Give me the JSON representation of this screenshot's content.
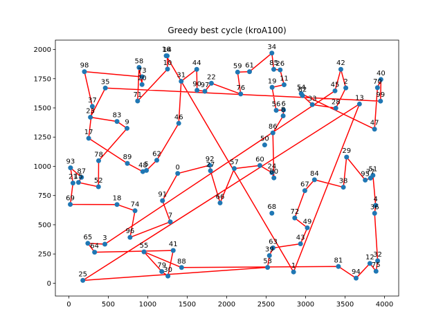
{
  "chart_data": {
    "type": "scatter",
    "title": "Greedy best cycle (kroA100)",
    "xlabel": "",
    "ylabel": "",
    "xlim": [
      -170,
      4180
    ],
    "ylim": [
      -110,
      2080
    ],
    "xticks": [
      0,
      500,
      1000,
      1500,
      2000,
      2500,
      3000,
      3500,
      4000
    ],
    "yticks": [
      0,
      250,
      500,
      750,
      1000,
      1250,
      1500,
      1750,
      2000
    ],
    "point_color": "#1f77b4",
    "line_color": "#ff0000",
    "points": [
      {
        "id": "0",
        "x": 1380,
        "y": 939
      },
      {
        "id": "1",
        "x": 2848,
        "y": 96
      },
      {
        "id": "2",
        "x": 3510,
        "y": 1671
      },
      {
        "id": "3",
        "x": 457,
        "y": 334
      },
      {
        "id": "4",
        "x": 3888,
        "y": 666
      },
      {
        "id": "5",
        "x": 984,
        "y": 965
      },
      {
        "id": "6",
        "x": 2721,
        "y": 1482
      },
      {
        "id": "7",
        "x": 1286,
        "y": 525
      },
      {
        "id": "8",
        "x": 2716,
        "y": 1432
      },
      {
        "id": "9",
        "x": 738,
        "y": 1325
      },
      {
        "id": "10",
        "x": 1251,
        "y": 1832
      },
      {
        "id": "11",
        "x": 2728,
        "y": 1698
      },
      {
        "id": "12",
        "x": 3815,
        "y": 169
      },
      {
        "id": "13",
        "x": 3683,
        "y": 1533
      },
      {
        "id": "14",
        "x": 1247,
        "y": 1945
      },
      {
        "id": "15",
        "x": 123,
        "y": 862
      },
      {
        "id": "16",
        "x": 1234,
        "y": 1946
      },
      {
        "id": "17",
        "x": 252,
        "y": 1240
      },
      {
        "id": "18",
        "x": 611,
        "y": 673
      },
      {
        "id": "19",
        "x": 2576,
        "y": 1676
      },
      {
        "id": "20",
        "x": 928,
        "y": 1700
      },
      {
        "id": "21",
        "x": 53,
        "y": 857
      },
      {
        "id": "22",
        "x": 1807,
        "y": 1711
      },
      {
        "id": "23",
        "x": 274,
        "y": 1420
      },
      {
        "id": "24",
        "x": 2574,
        "y": 946
      },
      {
        "id": "25",
        "x": 178,
        "y": 24
      },
      {
        "id": "26",
        "x": 2678,
        "y": 1825
      },
      {
        "id": "27",
        "x": 1795,
        "y": 962
      },
      {
        "id": "28",
        "x": 3384,
        "y": 1498
      },
      {
        "id": "29",
        "x": 3520,
        "y": 1079
      },
      {
        "id": "30",
        "x": 1256,
        "y": 61
      },
      {
        "id": "31",
        "x": 1424,
        "y": 1728
      },
      {
        "id": "32",
        "x": 3913,
        "y": 192
      },
      {
        "id": "33",
        "x": 3085,
        "y": 1528
      },
      {
        "id": "34",
        "x": 2573,
        "y": 1969
      },
      {
        "id": "35",
        "x": 463,
        "y": 1670
      },
      {
        "id": "36",
        "x": 3875,
        "y": 598
      },
      {
        "id": "37",
        "x": 298,
        "y": 1513
      },
      {
        "id": "38",
        "x": 3479,
        "y": 821
      },
      {
        "id": "39",
        "x": 2542,
        "y": 236
      },
      {
        "id": "40",
        "x": 3955,
        "y": 1743
      },
      {
        "id": "41",
        "x": 1323,
        "y": 280
      },
      {
        "id": "42",
        "x": 3447,
        "y": 1830
      },
      {
        "id": "43",
        "x": 2936,
        "y": 337
      },
      {
        "id": "44",
        "x": 1621,
        "y": 1830
      },
      {
        "id": "45",
        "x": 3373,
        "y": 1646
      },
      {
        "id": "46",
        "x": 1393,
        "y": 1368
      },
      {
        "id": "47",
        "x": 3874,
        "y": 1318
      },
      {
        "id": "48",
        "x": 938,
        "y": 955
      },
      {
        "id": "49",
        "x": 3022,
        "y": 474
      },
      {
        "id": "50",
        "x": 2482,
        "y": 1183
      },
      {
        "id": "51",
        "x": 3854,
        "y": 923
      },
      {
        "id": "52",
        "x": 376,
        "y": 825
      },
      {
        "id": "53",
        "x": 2519,
        "y": 135
      },
      {
        "id": "54",
        "x": 2945,
        "y": 1622
      },
      {
        "id": "55",
        "x": 953,
        "y": 268
      },
      {
        "id": "56",
        "x": 2628,
        "y": 1479
      },
      {
        "id": "57",
        "x": 2097,
        "y": 981
      },
      {
        "id": "58",
        "x": 890,
        "y": 1846
      },
      {
        "id": "59",
        "x": 2139,
        "y": 1806
      },
      {
        "id": "60",
        "x": 2421,
        "y": 1007
      },
      {
        "id": "61",
        "x": 2290,
        "y": 1810
      },
      {
        "id": "62",
        "x": 1115,
        "y": 1052
      },
      {
        "id": "63",
        "x": 2588,
        "y": 302
      },
      {
        "id": "64",
        "x": 327,
        "y": 265
      },
      {
        "id": "65",
        "x": 241,
        "y": 341
      },
      {
        "id": "66",
        "x": 1917,
        "y": 687
      },
      {
        "id": "67",
        "x": 2991,
        "y": 792
      },
      {
        "id": "68",
        "x": 2573,
        "y": 599
      },
      {
        "id": "69",
        "x": 19,
        "y": 674
      },
      {
        "id": "70",
        "x": 3911,
        "y": 1673
      },
      {
        "id": "71",
        "x": 872,
        "y": 1559
      },
      {
        "id": "72",
        "x": 2863,
        "y": 558
      },
      {
        "id": "73",
        "x": 929,
        "y": 1766
      },
      {
        "id": "74",
        "x": 839,
        "y": 620
      },
      {
        "id": "75",
        "x": 3893,
        "y": 102
      },
      {
        "id": "76",
        "x": 2178,
        "y": 1619
      },
      {
        "id": "77",
        "x": 3822,
        "y": 899
      },
      {
        "id": "78",
        "x": 378,
        "y": 1048
      },
      {
        "id": "79",
        "x": 1178,
        "y": 100
      },
      {
        "id": "80",
        "x": 2599,
        "y": 901
      },
      {
        "id": "81",
        "x": 3416,
        "y": 143
      },
      {
        "id": "82",
        "x": 2961,
        "y": 1605
      },
      {
        "id": "83",
        "x": 611,
        "y": 1384
      },
      {
        "id": "84",
        "x": 3113,
        "y": 885
      },
      {
        "id": "85",
        "x": 2597,
        "y": 1830
      },
      {
        "id": "86",
        "x": 2586,
        "y": 1286
      },
      {
        "id": "87",
        "x": 161,
        "y": 906
      },
      {
        "id": "88",
        "x": 1429,
        "y": 134
      },
      {
        "id": "89",
        "x": 742,
        "y": 1025
      },
      {
        "id": "90",
        "x": 1625,
        "y": 1651
      },
      {
        "id": "91",
        "x": 1187,
        "y": 706
      },
      {
        "id": "92",
        "x": 1787,
        "y": 1009
      },
      {
        "id": "93",
        "x": 22,
        "y": 987
      },
      {
        "id": "94",
        "x": 3640,
        "y": 43
      },
      {
        "id": "95",
        "x": 3756,
        "y": 882
      },
      {
        "id": "96",
        "x": 776,
        "y": 392
      },
      {
        "id": "97",
        "x": 1724,
        "y": 1642
      },
      {
        "id": "98",
        "x": 198,
        "y": 1810
      },
      {
        "id": "99",
        "x": 3950,
        "y": 1558
      }
    ],
    "cycle": [
      "99",
      "35",
      "23",
      "83",
      "9",
      "78",
      "52",
      "15",
      "87",
      "93",
      "21",
      "69",
      "18",
      "74",
      "96",
      "7",
      "91",
      "0",
      "92",
      "27",
      "66",
      "57",
      "60",
      "24",
      "80",
      "86",
      "8",
      "6",
      "56",
      "19",
      "11",
      "26",
      "85",
      "34",
      "61",
      "59",
      "76",
      "22",
      "97",
      "90",
      "44",
      "31",
      "46",
      "62",
      "5",
      "48",
      "89",
      "17",
      "37",
      "98",
      "73",
      "20",
      "58",
      "71",
      "10",
      "14",
      "16",
      "1",
      "13",
      "25",
      "53",
      "39",
      "63",
      "43",
      "49",
      "72",
      "67",
      "84",
      "38",
      "29",
      "95",
      "77",
      "51",
      "4",
      "36",
      "32",
      "75",
      "12",
      "94",
      "81",
      "88",
      "55",
      "79",
      "30",
      "41",
      "64",
      "65",
      "3",
      "45",
      "42",
      "2",
      "28",
      "33",
      "82",
      "54",
      "47",
      "70",
      "40",
      "99"
    ]
  }
}
